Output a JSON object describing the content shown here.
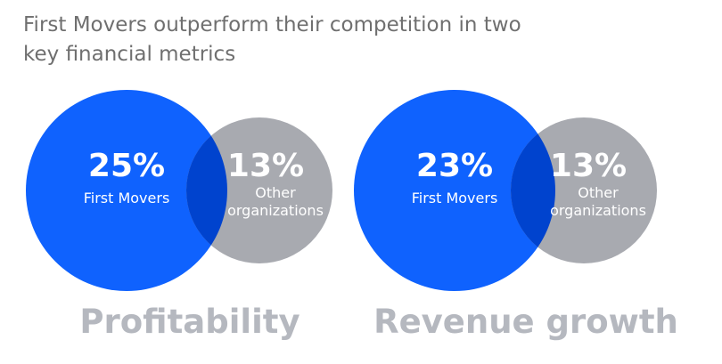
{
  "headline": "First Movers outperform their competition in two key financial metrics",
  "colors": {
    "first_movers": "#0f62fe",
    "other_organizations": "#a8aab0",
    "overlap": "#0043ce",
    "metric_label": "#b5b8bf",
    "headline_text": "#6f6f6f"
  },
  "chart_data": [
    {
      "type": "venn",
      "title": "Profitability",
      "series": [
        {
          "name": "First Movers",
          "value": 25,
          "label": "25%"
        },
        {
          "name": "Other organizations",
          "value": 13,
          "label": "13%"
        }
      ]
    },
    {
      "type": "venn",
      "title": "Revenue growth",
      "series": [
        {
          "name": "First Movers",
          "value": 23,
          "label": "23%"
        },
        {
          "name": "Other organizations",
          "value": 13,
          "label": "13%"
        }
      ]
    }
  ]
}
